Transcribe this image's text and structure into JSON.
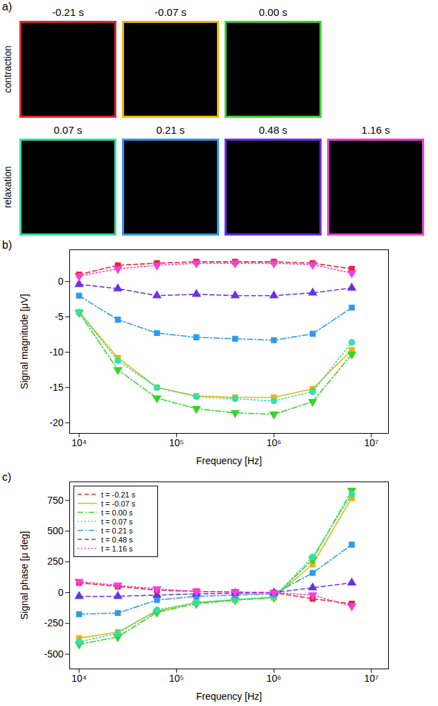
{
  "images_panel": {
    "label": "a)",
    "type": "images",
    "rows": [
      {
        "name": "contraction",
        "images": [
          {
            "title": "-0.21 s",
            "color": "#e8262a"
          },
          {
            "title": "-0.07 s",
            "color": "#f0b400"
          },
          {
            "title": "0.00 s",
            "color": "#3ad22c"
          }
        ]
      },
      {
        "name": "relaxation",
        "images": [
          {
            "title": "0.07 s",
            "color": "#2fe3a8"
          },
          {
            "title": "0.21 s",
            "color": "#2b9cf0"
          },
          {
            "title": "0.48 s",
            "color": "#6a31e6"
          },
          {
            "title": "1.16 s",
            "color": "#f53fd9"
          }
        ]
      }
    ]
  },
  "chart_data": [
    {
      "type": "line",
      "label": "b)",
      "log": "x",
      "x_label": "Frequency [Hz]",
      "y_label": "Signal magnitude [μV]",
      "x": [
        10000,
        25000,
        63000,
        160000,
        400000,
        1000000,
        2500000,
        6300000
      ],
      "xlim": [
        8000,
        15000000
      ],
      "xticks": [
        {
          "value": 10000,
          "label": "10⁴"
        },
        {
          "value": 100000,
          "label": "10⁵"
        },
        {
          "value": 1000000,
          "label": "10⁶"
        },
        {
          "value": 10000000,
          "label": "10⁷"
        }
      ],
      "ylim": [
        -21.5,
        4.5
      ],
      "yticks": [
        -20,
        -15,
        -10,
        -5,
        0
      ],
      "series": [
        {
          "name": "t = -0.21 s",
          "color": "#e8262a",
          "marker": "square",
          "line_style": "dashed",
          "values": [
            1.0,
            2.3,
            2.6,
            2.8,
            2.8,
            2.8,
            2.6,
            1.8
          ]
        },
        {
          "name": "t = -0.07 s",
          "color": "#f0b400",
          "marker": "square",
          "line_style": "solid",
          "values": [
            -4.3,
            -10.8,
            -15.0,
            -16.2,
            -16.4,
            -16.4,
            -15.2,
            -9.7
          ]
        },
        {
          "name": "t = 0.00 s",
          "color": "#3ad22c",
          "marker": "triangle-down",
          "line_style": "dashdot",
          "values": [
            -4.4,
            -12.5,
            -16.5,
            -18.0,
            -18.6,
            -18.8,
            -17.0,
            -10.3
          ]
        },
        {
          "name": "t = 0.07 s",
          "color": "#2fe3a8",
          "marker": "circle",
          "line_style": "dotted",
          "values": [
            -4.3,
            -11.2,
            -15.0,
            -16.3,
            -16.6,
            -16.9,
            -15.6,
            -8.6
          ]
        },
        {
          "name": "t = 0.21 s",
          "color": "#2b9cf0",
          "marker": "square",
          "line_style": "dashdot",
          "values": [
            -2.0,
            -5.4,
            -7.3,
            -7.9,
            -8.1,
            -8.3,
            -7.4,
            -3.7
          ]
        },
        {
          "name": "t = 0.48 s",
          "color": "#6a31e6",
          "marker": "triangle-up",
          "line_style": "dashed",
          "values": [
            -0.4,
            -1.0,
            -2.0,
            -1.8,
            -2.0,
            -2.0,
            -1.6,
            -0.9
          ]
        },
        {
          "name": "t = 1.16 s",
          "color": "#f53fd9",
          "marker": "triangle-down",
          "line_style": "dotted",
          "values": [
            0.8,
            1.8,
            2.3,
            2.6,
            2.6,
            2.6,
            2.4,
            1.2
          ]
        }
      ]
    },
    {
      "type": "line",
      "label": "c)",
      "log": "x",
      "legend": "top-left",
      "x_label": "Frequency [Hz]",
      "y_label": "Signal phase [μ deg]",
      "x": [
        10000,
        25000,
        63000,
        160000,
        400000,
        1000000,
        2500000,
        6300000
      ],
      "xlim": [
        8000,
        15000000
      ],
      "xticks": [
        {
          "value": 10000,
          "label": "10⁴"
        },
        {
          "value": 100000,
          "label": "10⁵"
        },
        {
          "value": 1000000,
          "label": "10⁶"
        },
        {
          "value": 10000000,
          "label": "10⁷"
        }
      ],
      "ylim": [
        -620,
        900
      ],
      "yticks": [
        -500,
        -250,
        0,
        250,
        500,
        750
      ],
      "series": [
        {
          "name": "t = -0.21 s",
          "color": "#e8262a",
          "marker": "square",
          "line_style": "dashed",
          "values": [
            80,
            50,
            20,
            10,
            5,
            0,
            -50,
            -90
          ]
        },
        {
          "name": "t = -0.07 s",
          "color": "#f0b400",
          "marker": "square",
          "line_style": "solid",
          "values": [
            -370,
            -320,
            -150,
            -80,
            -60,
            -40,
            230,
            770
          ]
        },
        {
          "name": "t = 0.00 s",
          "color": "#3ad22c",
          "marker": "triangle-down",
          "line_style": "dashdot",
          "values": [
            -420,
            -360,
            -160,
            -90,
            -60,
            -40,
            270,
            830
          ]
        },
        {
          "name": "t = 0.07 s",
          "color": "#2fe3a8",
          "marker": "circle",
          "line_style": "dotted",
          "values": [
            -400,
            -330,
            -140,
            -80,
            -55,
            -35,
            290,
            800
          ]
        },
        {
          "name": "t = 0.21 s",
          "color": "#2b9cf0",
          "marker": "square",
          "line_style": "dashdot",
          "values": [
            -175,
            -165,
            -60,
            -30,
            -20,
            -10,
            160,
            390
          ]
        },
        {
          "name": "t = 0.48 s",
          "color": "#6a31e6",
          "marker": "triangle-up",
          "line_style": "dashed",
          "values": [
            -30,
            -30,
            -20,
            -10,
            -5,
            0,
            40,
            80
          ]
        },
        {
          "name": "t = 1.16 s",
          "color": "#f53fd9",
          "marker": "triangle-down",
          "line_style": "dotted",
          "values": [
            90,
            60,
            30,
            10,
            5,
            0,
            -20,
            -110
          ]
        }
      ]
    }
  ]
}
